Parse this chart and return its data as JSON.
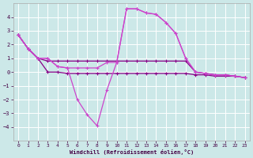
{
  "background_color": "#cce8e8",
  "grid_color": "#aadddd",
  "line_color_dark": "#880088",
  "line_color_bright": "#cc44cc",
  "xlabel": "Windchill (Refroidissement éolien,°C)",
  "ylim": [
    -5,
    5
  ],
  "xlim": [
    -0.5,
    23.5
  ],
  "yticks": [
    -4,
    -3,
    -2,
    -1,
    0,
    1,
    2,
    3,
    4
  ],
  "xticks": [
    0,
    1,
    2,
    3,
    4,
    5,
    6,
    7,
    8,
    9,
    10,
    11,
    12,
    13,
    14,
    15,
    16,
    17,
    18,
    19,
    20,
    21,
    22,
    23
  ],
  "lineA_x": [
    0,
    1,
    2,
    3,
    4,
    5,
    6,
    7,
    8,
    9,
    10,
    11,
    12,
    13,
    14,
    15,
    16,
    17,
    18,
    19,
    20,
    21,
    22,
    23
  ],
  "lineA_y": [
    2.7,
    1.7,
    1.0,
    1.0,
    0.4,
    0.3,
    0.3,
    0.3,
    0.3,
    0.7,
    0.7,
    4.6,
    4.6,
    4.3,
    4.2,
    3.6,
    2.8,
    1.0,
    0.0,
    -0.1,
    -0.2,
    -0.2,
    -0.3,
    -0.4
  ],
  "lineB_x": [
    0,
    1,
    2,
    3,
    4,
    5,
    6,
    7,
    8,
    9,
    10,
    11,
    12,
    13,
    14,
    15,
    16,
    17,
    18,
    19,
    20,
    21,
    22,
    23
  ],
  "lineB_y": [
    2.7,
    1.7,
    1.0,
    1.0,
    0.4,
    0.3,
    -2.0,
    -3.1,
    -3.9,
    -1.3,
    0.7,
    4.6,
    4.6,
    4.3,
    4.2,
    3.6,
    2.8,
    1.0,
    0.0,
    -0.1,
    -0.2,
    -0.2,
    -0.3,
    -0.4
  ],
  "lineC_x": [
    0,
    1,
    2,
    3,
    4,
    5,
    6,
    7,
    8,
    9,
    10,
    11,
    12,
    13,
    14,
    15,
    16,
    17,
    18,
    19,
    20,
    21,
    22,
    23
  ],
  "lineC_y": [
    2.7,
    1.7,
    1.0,
    0.8,
    0.8,
    0.8,
    0.8,
    0.8,
    0.8,
    0.8,
    0.8,
    0.8,
    0.8,
    0.8,
    0.8,
    0.8,
    0.8,
    0.8,
    0.0,
    -0.1,
    -0.2,
    -0.2,
    -0.3,
    -0.4
  ],
  "lineD_x": [
    0,
    1,
    2,
    3,
    4,
    5,
    6,
    7,
    8,
    9,
    10,
    11,
    12,
    13,
    14,
    15,
    16,
    17,
    18,
    19,
    20,
    21,
    22,
    23
  ],
  "lineD_y": [
    2.7,
    1.7,
    1.0,
    0.0,
    0.0,
    -0.1,
    -0.1,
    -0.1,
    -0.1,
    -0.1,
    -0.1,
    -0.1,
    -0.1,
    -0.1,
    -0.1,
    -0.1,
    -0.1,
    -0.1,
    -0.2,
    -0.2,
    -0.3,
    -0.3,
    -0.3,
    -0.4
  ]
}
